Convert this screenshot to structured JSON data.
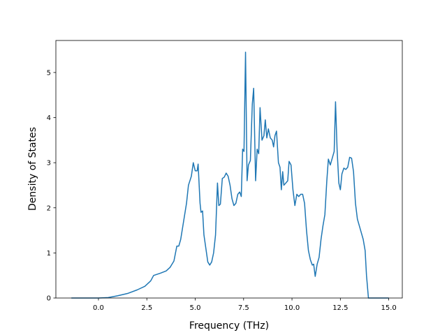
{
  "chart_data": {
    "type": "line",
    "xlabel": "Frequency (THz)",
    "ylabel": "Density of States",
    "xlim": [
      -2.2,
      15.7
    ],
    "ylim": [
      0,
      5.71
    ],
    "xticks": [
      {
        "value": 0,
        "label": "0.0"
      },
      {
        "value": 2.5,
        "label": "2.5"
      },
      {
        "value": 5,
        "label": "5.0"
      },
      {
        "value": 7.5,
        "label": "7.5"
      },
      {
        "value": 10,
        "label": "10.0"
      },
      {
        "value": 12.5,
        "label": "12.5"
      },
      {
        "value": 15,
        "label": "15.0"
      }
    ],
    "yticks": [
      0,
      1,
      2,
      3,
      4,
      5
    ],
    "grid": false,
    "x": [
      -1.4,
      0,
      0.5,
      1.0,
      1.5,
      2.0,
      2.4,
      2.7,
      2.85,
      3.2,
      3.5,
      3.7,
      3.9,
      4.05,
      4.15,
      4.25,
      4.4,
      4.55,
      4.65,
      4.8,
      4.9,
      5.0,
      5.1,
      5.15,
      5.25,
      5.3,
      5.38,
      5.45,
      5.55,
      5.65,
      5.75,
      5.85,
      5.95,
      6.05,
      6.15,
      6.22,
      6.3,
      6.4,
      6.5,
      6.6,
      6.7,
      6.8,
      6.9,
      7.0,
      7.1,
      7.2,
      7.3,
      7.38,
      7.45,
      7.52,
      7.6,
      7.68,
      7.75,
      7.85,
      7.95,
      8.02,
      8.12,
      8.2,
      8.28,
      8.35,
      8.45,
      8.55,
      8.62,
      8.7,
      8.78,
      8.88,
      8.98,
      9.05,
      9.12,
      9.2,
      9.3,
      9.38,
      9.45,
      9.52,
      9.58,
      9.68,
      9.78,
      9.85,
      9.95,
      10.05,
      10.15,
      10.25,
      10.35,
      10.45,
      10.55,
      10.65,
      10.75,
      10.85,
      10.95,
      11.05,
      11.12,
      11.2,
      11.3,
      11.4,
      11.5,
      11.6,
      11.7,
      11.8,
      11.88,
      11.98,
      12.08,
      12.18,
      12.25,
      12.33,
      12.42,
      12.5,
      12.58,
      12.68,
      12.78,
      12.88,
      12.98,
      13.08,
      13.18,
      13.28,
      13.38,
      13.48,
      13.58,
      13.68,
      13.78,
      13.85,
      13.95,
      15.0
    ],
    "series": [
      {
        "color": "#1f77b4",
        "values": [
          0,
          0,
          0.01,
          0.05,
          0.1,
          0.18,
          0.26,
          0.38,
          0.5,
          0.55,
          0.6,
          0.68,
          0.82,
          1.15,
          1.15,
          1.3,
          1.7,
          2.1,
          2.5,
          2.7,
          3.0,
          2.82,
          2.82,
          2.97,
          2.1,
          1.9,
          1.93,
          1.4,
          1.1,
          0.8,
          0.73,
          0.8,
          1.0,
          1.4,
          2.55,
          2.05,
          2.08,
          2.65,
          2.68,
          2.77,
          2.7,
          2.5,
          2.2,
          2.05,
          2.1,
          2.3,
          2.35,
          2.25,
          3.3,
          3.25,
          5.45,
          2.6,
          2.95,
          3.05,
          4.3,
          4.65,
          2.6,
          3.3,
          3.2,
          4.22,
          3.5,
          3.6,
          3.95,
          3.55,
          3.75,
          3.55,
          3.5,
          3.35,
          3.6,
          3.7,
          3.0,
          2.9,
          2.4,
          2.8,
          2.5,
          2.55,
          2.6,
          3.03,
          2.95,
          2.4,
          2.05,
          2.3,
          2.25,
          2.3,
          2.3,
          2.1,
          1.5,
          1.05,
          0.85,
          0.73,
          0.75,
          0.48,
          0.75,
          0.9,
          1.3,
          1.6,
          1.85,
          2.6,
          3.08,
          2.95,
          3.1,
          3.25,
          4.35,
          3.3,
          2.55,
          2.4,
          2.75,
          2.88,
          2.85,
          2.9,
          3.12,
          3.1,
          2.8,
          2.1,
          1.75,
          1.6,
          1.45,
          1.3,
          1.05,
          0.5,
          0,
          0
        ]
      }
    ]
  }
}
